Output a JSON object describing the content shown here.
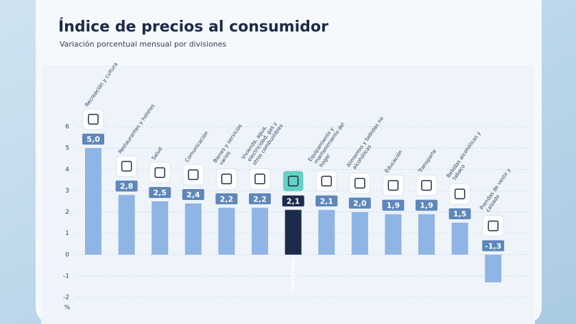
{
  "chart_data": {
    "type": "bar",
    "title": "Índice de precios al consumidor",
    "subtitle": "Variación porcentual mensual por divisiones",
    "y_label": "%",
    "categories": [
      "Recreación y cultura",
      "Restaurantes y hoteles",
      "Salud",
      "Comunicación",
      "Bienes y servicios varios",
      "Vivienda, agua, electricidad, gas y otros combustibles",
      "NIVEL GENERAL",
      "Equipamiento y mantenimiento del hogar",
      "Alimentos y bebidas no alcohólicas",
      "Educación",
      "Transporte",
      "Bebidas alcohólicas y tabaco",
      "Prendas de vestir y calzado"
    ],
    "values": [
      5.0,
      2.8,
      2.5,
      2.4,
      2.2,
      2.2,
      2.1,
      2.1,
      2.0,
      1.9,
      1.9,
      1.5,
      -1.3
    ],
    "value_labels": [
      "5,0",
      "2,8",
      "2,5",
      "2,4",
      "2,2",
      "2,2",
      "2,1",
      "2,1",
      "2,0",
      "1,9",
      "1,9",
      "1,5",
      "-1,3"
    ],
    "colors": [
      "#8fb5e4",
      "#8fb5e4",
      "#8fb5e4",
      "#8fb5e4",
      "#8fb5e4",
      "#8fb5e4",
      "#1c2b49",
      "#8fb5e4",
      "#8fb5e4",
      "#8fb5e4",
      "#8fb5e4",
      "#8fb5e4",
      "#8fb5e4"
    ],
    "ylim": [
      -2,
      6
    ],
    "yticks": [
      6,
      5,
      4,
      3,
      2,
      1,
      0,
      -1,
      -2
    ],
    "grid": true
  }
}
